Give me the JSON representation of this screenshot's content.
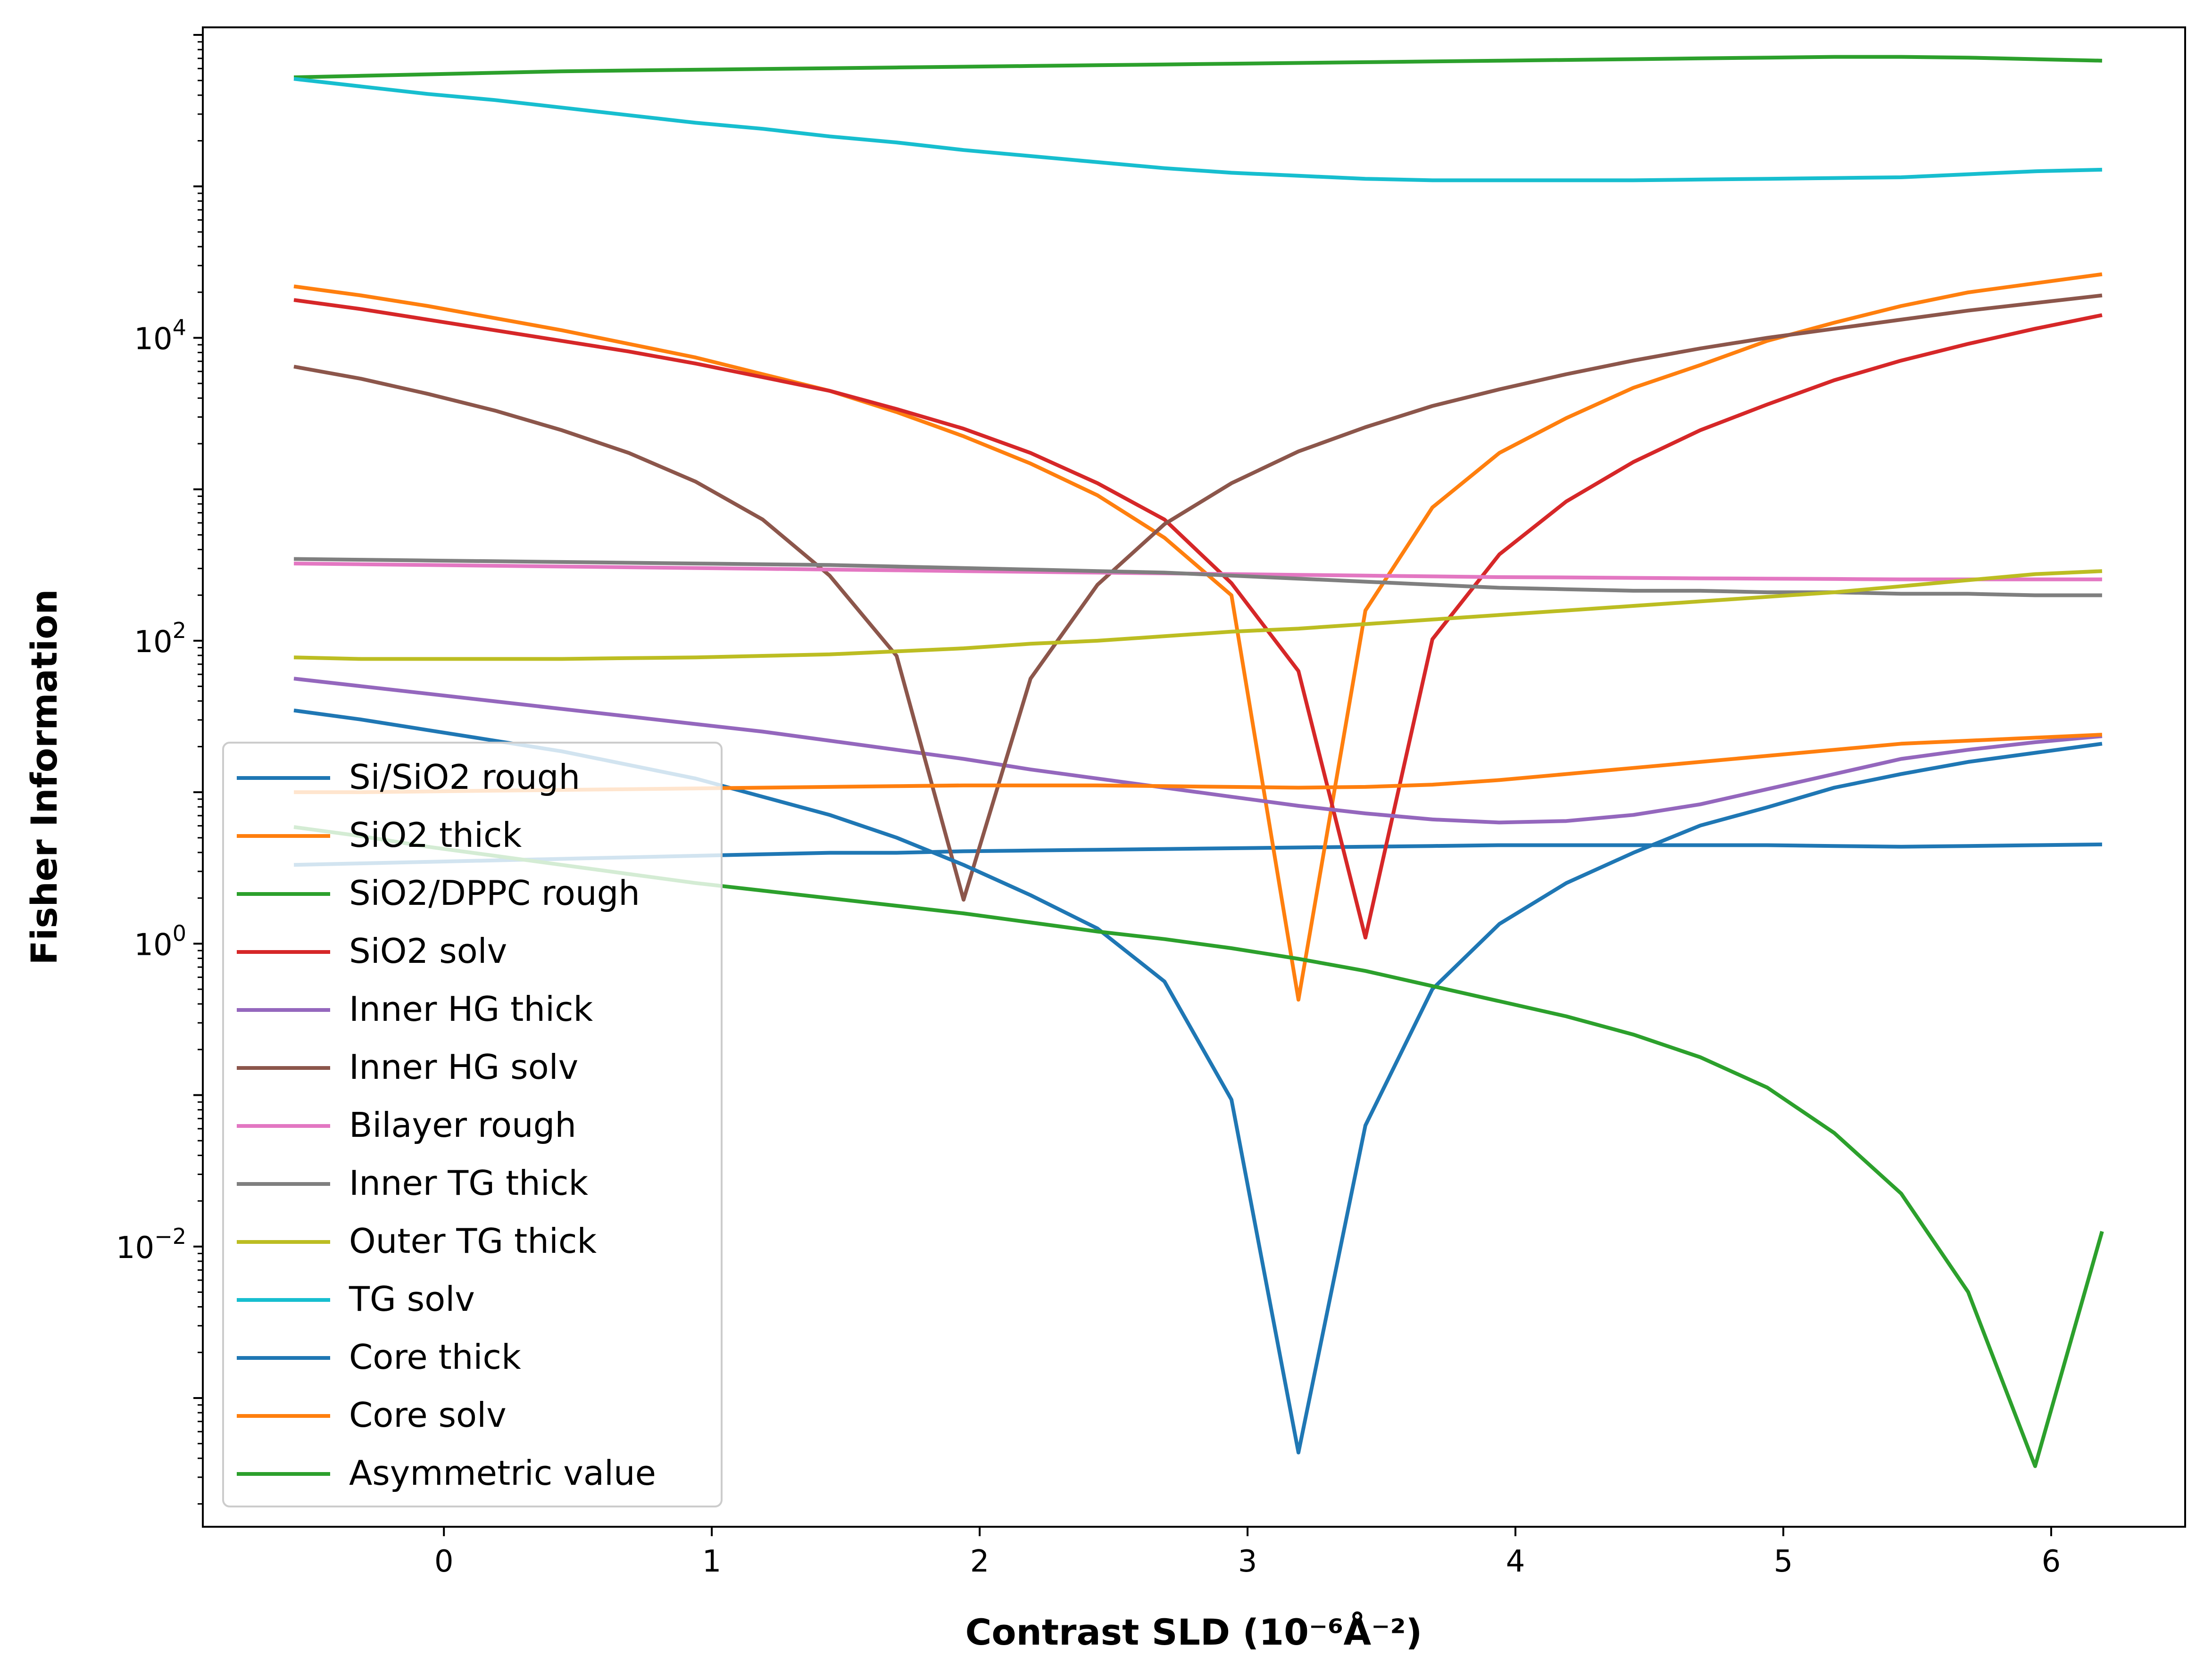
{
  "chart_data": {
    "type": "line",
    "title": "",
    "xlabel": "Contrast SLD (10⁻⁶Å⁻²)",
    "ylabel": "Fisher Information",
    "xlim": [
      -0.9,
      6.5
    ],
    "ylim_log10": [
      -3.85,
      6.05
    ],
    "yscale": "log",
    "grid": false,
    "legend_position": "lower-left",
    "x_ticks": [
      {
        "value": 0,
        "label": "0"
      },
      {
        "value": 1,
        "label": "1"
      },
      {
        "value": 2,
        "label": "2"
      },
      {
        "value": 3,
        "label": "3"
      },
      {
        "value": 4,
        "label": "4"
      },
      {
        "value": 5,
        "label": "5"
      },
      {
        "value": 6,
        "label": "6"
      }
    ],
    "y_ticks": [
      {
        "exp": 4,
        "base": "10",
        "sup": "4"
      },
      {
        "exp": 2,
        "base": "10",
        "sup": "2"
      },
      {
        "exp": 0,
        "base": "10",
        "sup": "0"
      },
      {
        "exp": -2,
        "base": "10",
        "sup": "−2"
      }
    ],
    "x": [
      -0.56,
      -0.31,
      -0.06,
      0.19,
      0.44,
      0.69,
      0.94,
      1.19,
      1.44,
      1.69,
      1.94,
      2.19,
      2.44,
      2.69,
      2.94,
      3.19,
      3.44,
      3.69,
      3.94,
      4.19,
      4.44,
      4.69,
      4.94,
      5.19,
      5.44,
      5.69,
      5.94,
      6.19
    ],
    "series": [
      {
        "name": "Si/SiO2 rough",
        "color": "#1f77b4",
        "log10": [
          0.52,
          0.53,
          0.54,
          0.55,
          0.56,
          0.57,
          0.58,
          0.59,
          0.6,
          0.6,
          0.61,
          0.615,
          0.62,
          0.625,
          0.63,
          0.635,
          0.64,
          0.645,
          0.65,
          0.65,
          0.65,
          0.65,
          0.65,
          0.645,
          0.64,
          0.645,
          0.65,
          0.655
        ]
      },
      {
        "name": "SiO2 thick",
        "color": "#ff7f0e",
        "log10": [
          4.34,
          4.28,
          4.21,
          4.13,
          4.05,
          3.96,
          3.87,
          3.76,
          3.65,
          3.51,
          3.35,
          3.17,
          2.96,
          2.68,
          2.3,
          -0.37,
          2.2,
          2.88,
          3.24,
          3.47,
          3.67,
          3.82,
          3.98,
          4.1,
          4.21,
          4.3,
          4.36,
          4.42
        ]
      },
      {
        "name": "SiO2/DPPC rough",
        "color": "#2ca02c",
        "log10": [
          5.72,
          5.73,
          5.74,
          5.75,
          5.76,
          5.765,
          5.77,
          5.775,
          5.78,
          5.785,
          5.79,
          5.795,
          5.8,
          5.805,
          5.81,
          5.815,
          5.82,
          5.825,
          5.83,
          5.835,
          5.84,
          5.845,
          5.85,
          5.855,
          5.855,
          5.85,
          5.84,
          5.83
        ]
      },
      {
        "name": "SiO2 solv",
        "color": "#d62728",
        "log10": [
          4.25,
          4.19,
          4.12,
          4.05,
          3.98,
          3.91,
          3.83,
          3.74,
          3.65,
          3.53,
          3.4,
          3.24,
          3.04,
          2.8,
          2.38,
          1.8,
          0.04,
          2.01,
          2.57,
          2.92,
          3.18,
          3.39,
          3.56,
          3.72,
          3.85,
          3.96,
          4.06,
          4.15
        ]
      },
      {
        "name": "Inner HG thick",
        "color": "#9467bd",
        "log10": [
          1.75,
          1.7,
          1.65,
          1.6,
          1.55,
          1.5,
          1.45,
          1.4,
          1.34,
          1.28,
          1.22,
          1.15,
          1.09,
          1.03,
          0.97,
          0.91,
          0.86,
          0.82,
          0.8,
          0.81,
          0.85,
          0.92,
          1.02,
          1.12,
          1.22,
          1.28,
          1.33,
          1.37
        ]
      },
      {
        "name": "Inner HG solv",
        "color": "#8c564b",
        "log10": [
          3.81,
          3.73,
          3.63,
          3.52,
          3.39,
          3.24,
          3.05,
          2.8,
          2.43,
          1.9,
          0.29,
          1.75,
          2.37,
          2.77,
          3.04,
          3.25,
          3.41,
          3.55,
          3.66,
          3.76,
          3.85,
          3.93,
          4.0,
          4.06,
          4.12,
          4.18,
          4.23,
          4.28
        ]
      },
      {
        "name": "Bilayer rough",
        "color": "#e377c2",
        "log10": [
          2.51,
          2.505,
          2.5,
          2.495,
          2.49,
          2.485,
          2.48,
          2.475,
          2.47,
          2.465,
          2.46,
          2.455,
          2.45,
          2.445,
          2.44,
          2.435,
          2.43,
          2.425,
          2.42,
          2.418,
          2.415,
          2.412,
          2.41,
          2.408,
          2.405,
          2.405,
          2.405,
          2.405
        ]
      },
      {
        "name": "Inner TG thick",
        "color": "#7f7f7f",
        "log10": [
          2.54,
          2.535,
          2.53,
          2.525,
          2.52,
          2.515,
          2.51,
          2.505,
          2.5,
          2.49,
          2.48,
          2.47,
          2.46,
          2.45,
          2.43,
          2.41,
          2.39,
          2.37,
          2.35,
          2.34,
          2.33,
          2.33,
          2.32,
          2.32,
          2.31,
          2.31,
          2.3,
          2.3
        ]
      },
      {
        "name": "Outer TG thick",
        "color": "#bcbd22",
        "log10": [
          1.89,
          1.88,
          1.88,
          1.88,
          1.88,
          1.885,
          1.89,
          1.9,
          1.91,
          1.93,
          1.95,
          1.98,
          2.0,
          2.03,
          2.06,
          2.08,
          2.11,
          2.14,
          2.17,
          2.2,
          2.23,
          2.26,
          2.29,
          2.32,
          2.36,
          2.4,
          2.44,
          2.46
        ]
      },
      {
        "name": "TG solv",
        "color": "#17becf",
        "log10": [
          5.71,
          5.66,
          5.61,
          5.57,
          5.52,
          5.47,
          5.42,
          5.38,
          5.33,
          5.29,
          5.24,
          5.2,
          5.16,
          5.12,
          5.09,
          5.07,
          5.05,
          5.04,
          5.04,
          5.04,
          5.04,
          5.045,
          5.05,
          5.055,
          5.06,
          5.08,
          5.1,
          5.11
        ]
      },
      {
        "name": "Core thick",
        "color": "#1f77b4",
        "log10": [
          1.54,
          1.48,
          1.41,
          1.34,
          1.27,
          1.18,
          1.09,
          0.97,
          0.85,
          0.7,
          0.52,
          0.32,
          0.1,
          -0.25,
          -1.03,
          -3.36,
          -1.2,
          -0.3,
          0.13,
          0.4,
          0.6,
          0.78,
          0.9,
          1.03,
          1.12,
          1.2,
          1.26,
          1.32
        ]
      },
      {
        "name": "Core solv",
        "color": "#ff7f0e",
        "log10": [
          1.0,
          1.0,
          1.005,
          1.01,
          1.015,
          1.02,
          1.025,
          1.03,
          1.035,
          1.04,
          1.045,
          1.045,
          1.045,
          1.04,
          1.035,
          1.03,
          1.035,
          1.05,
          1.08,
          1.12,
          1.16,
          1.2,
          1.24,
          1.28,
          1.32,
          1.34,
          1.36,
          1.38
        ]
      },
      {
        "name": "Asymmetric value",
        "color": "#2ca02c",
        "log10": [
          0.77,
          0.71,
          0.64,
          0.58,
          0.52,
          0.46,
          0.4,
          0.35,
          0.3,
          0.25,
          0.2,
          0.14,
          0.08,
          0.03,
          -0.03,
          -0.1,
          -0.18,
          -0.28,
          -0.38,
          -0.48,
          -0.6,
          -0.75,
          -0.95,
          -1.25,
          -1.65,
          -2.3,
          -3.45,
          -1.9
        ]
      }
    ]
  }
}
